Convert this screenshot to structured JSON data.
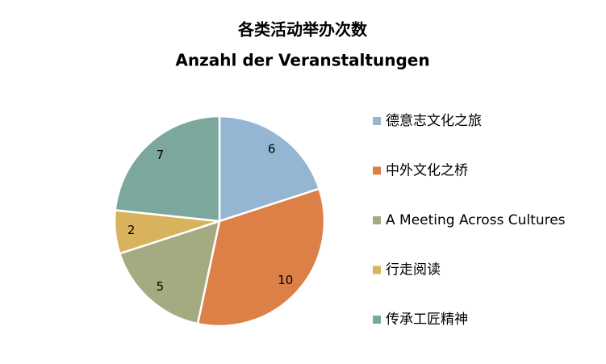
{
  "chart_data": {
    "type": "pie",
    "title": "各类活动举办次数",
    "subtitle": "Anzahl der Veranstaltungen",
    "categories": [
      "德意志文化之旅",
      "中外文化之桥",
      "A Meeting Across Cultures",
      "行走阅读",
      "传承工匠精神"
    ],
    "values": [
      6,
      10,
      5,
      2,
      7
    ],
    "colors": [
      "#94b6d2",
      "#dd8047",
      "#a5ab81",
      "#d8b25c",
      "#7ba79d"
    ],
    "legend": "right"
  }
}
